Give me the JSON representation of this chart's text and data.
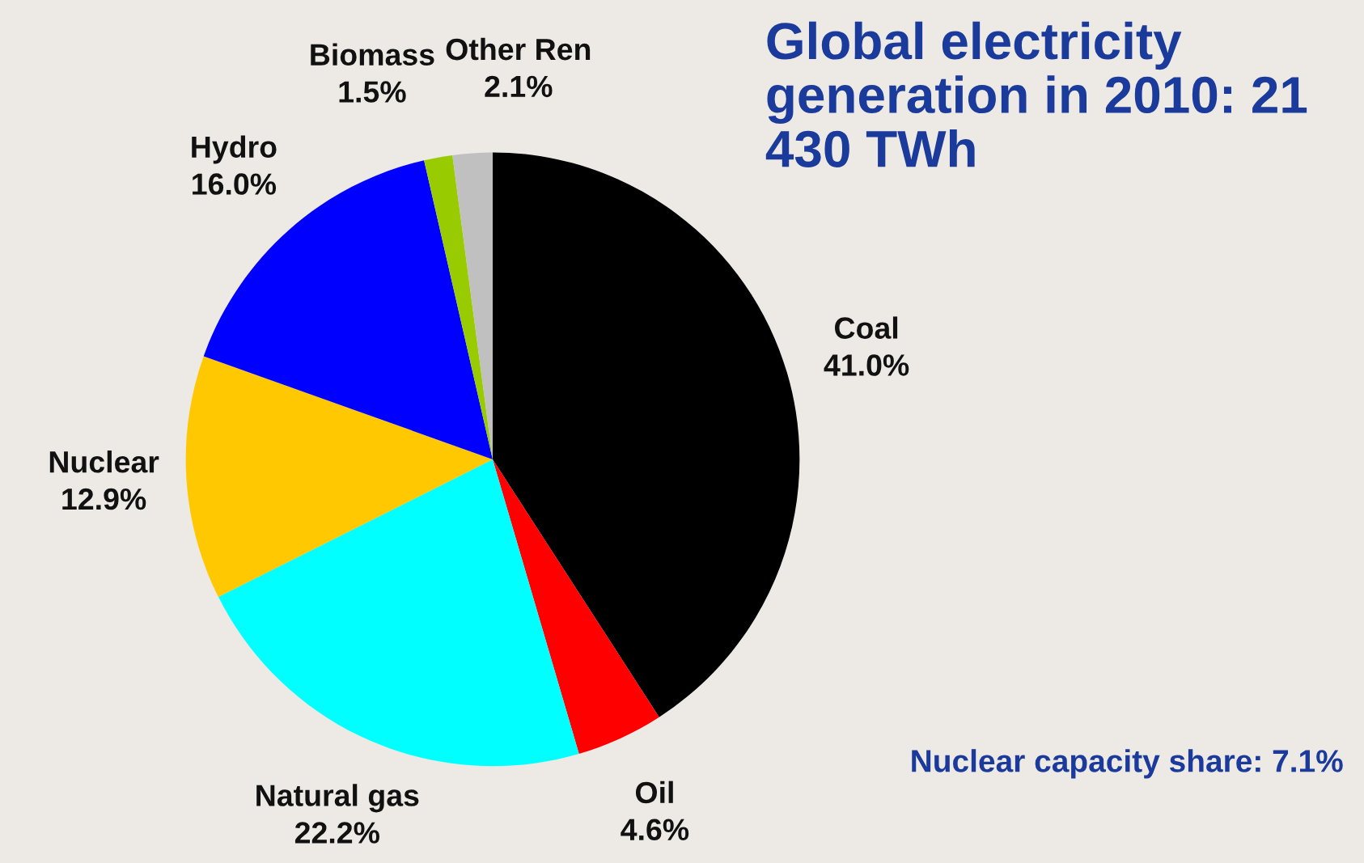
{
  "chart_data": {
    "type": "pie",
    "title": "Global electricity generation in 2010: 21 430 TWh",
    "categories": [
      "Coal",
      "Oil",
      "Natural gas",
      "Nuclear",
      "Hydro",
      "Biomass",
      "Other Ren"
    ],
    "values": [
      41.0,
      4.6,
      22.2,
      12.9,
      16.0,
      1.5,
      2.1
    ],
    "colors": [
      "#000000",
      "#ff0000",
      "#00ffff",
      "#ffc800",
      "#0000ff",
      "#99cc00",
      "#c0c0c0"
    ],
    "value_labels": [
      "41.0%",
      "4.6%",
      "22.2%",
      "12.9%",
      "16.0%",
      "1.5%",
      "2.1%"
    ],
    "annotations": [
      "Nuclear capacity share: 7.1%"
    ],
    "legend": false
  }
}
